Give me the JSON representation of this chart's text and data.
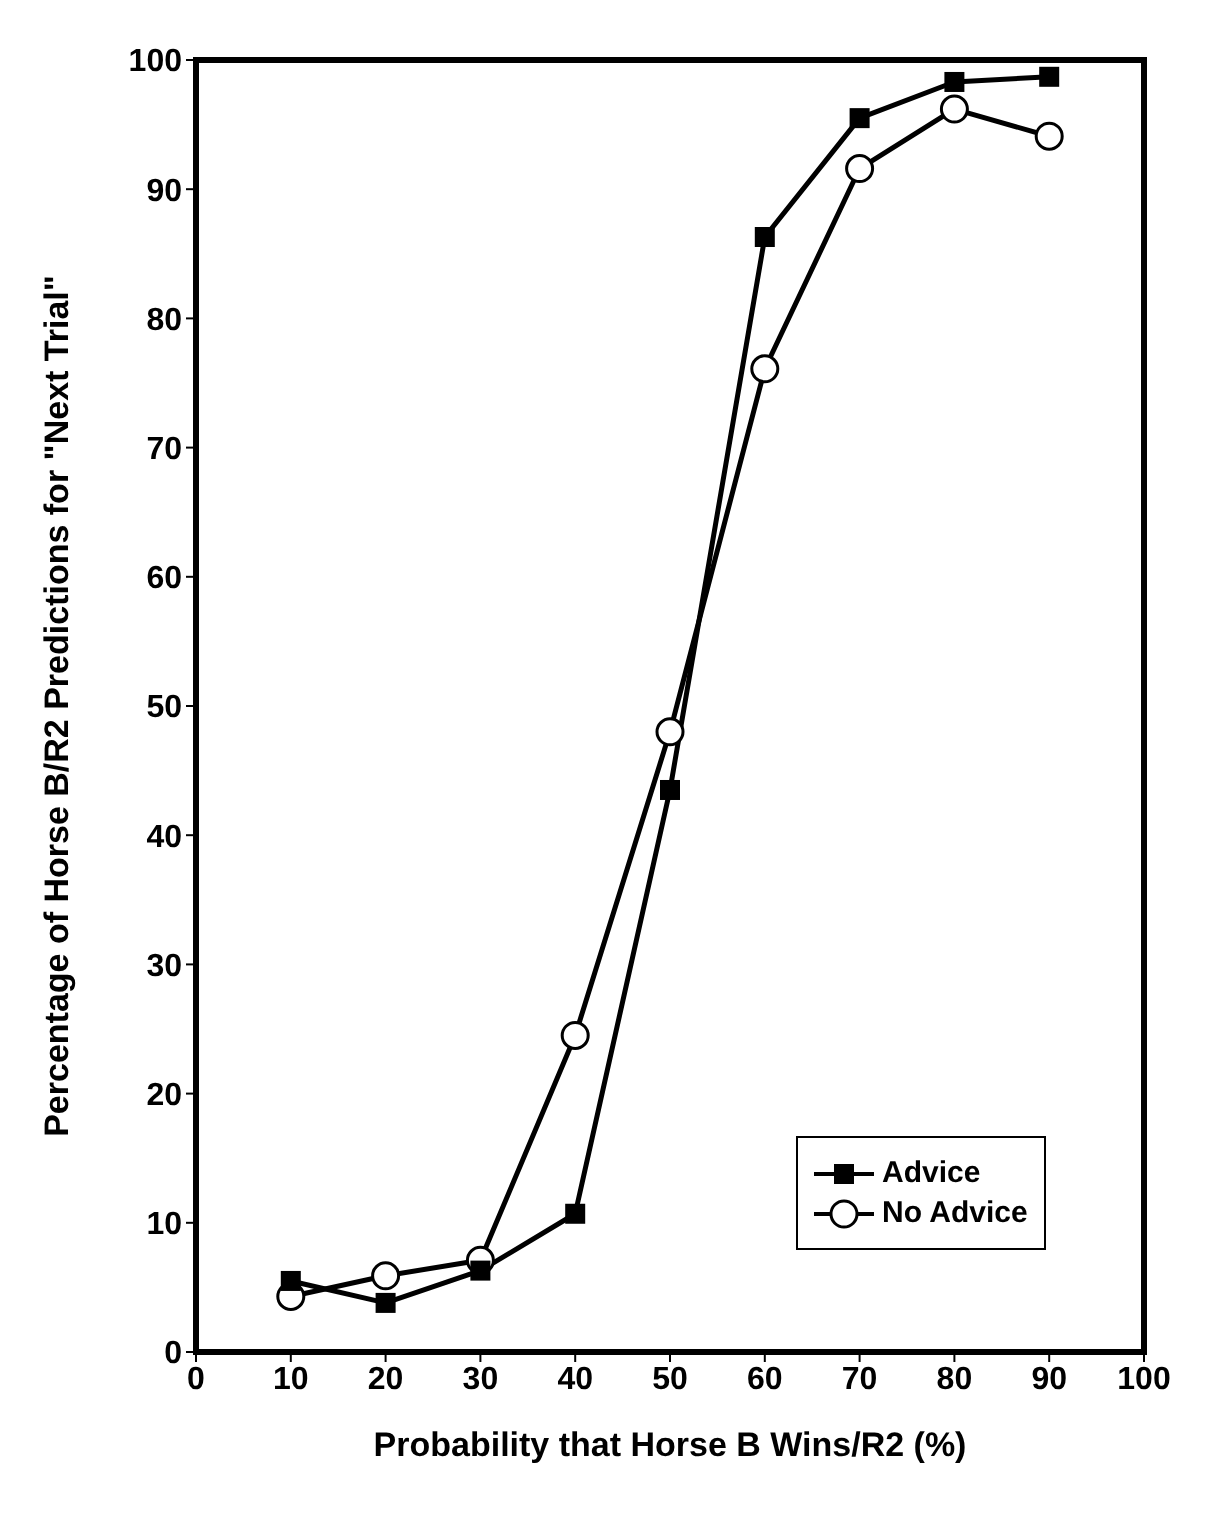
{
  "chart_data": {
    "type": "line",
    "xlabel": "Probability that Horse B Wins/R2 (%)",
    "ylabel": "Percentage of Horse B/R2 Predictions for \"Next Trial\"",
    "x": [
      10,
      20,
      30,
      40,
      50,
      60,
      70,
      80,
      90
    ],
    "series": [
      {
        "name": "Advice",
        "color": "#000000",
        "marker": "square",
        "values": [
          5.5,
          3.8,
          6.3,
          10.7,
          43.5,
          86.3,
          95.5,
          98.3,
          98.7
        ]
      },
      {
        "name": "No Advice",
        "color": "#000000",
        "marker": "circle",
        "values": [
          4.3,
          5.9,
          7.1,
          24.5,
          48,
          76.1,
          91.6,
          96.2,
          94.1
        ]
      }
    ],
    "xlim": [
      0,
      100
    ],
    "xticks": [
      0,
      10,
      20,
      30,
      40,
      50,
      60,
      70,
      80,
      90,
      100
    ],
    "ylim": [
      0,
      100
    ],
    "yticks": [
      0,
      10,
      20,
      30,
      40,
      50,
      60,
      70,
      80,
      90,
      100
    ],
    "grid": false,
    "legend": "bottom right",
    "line_style": "solid"
  }
}
